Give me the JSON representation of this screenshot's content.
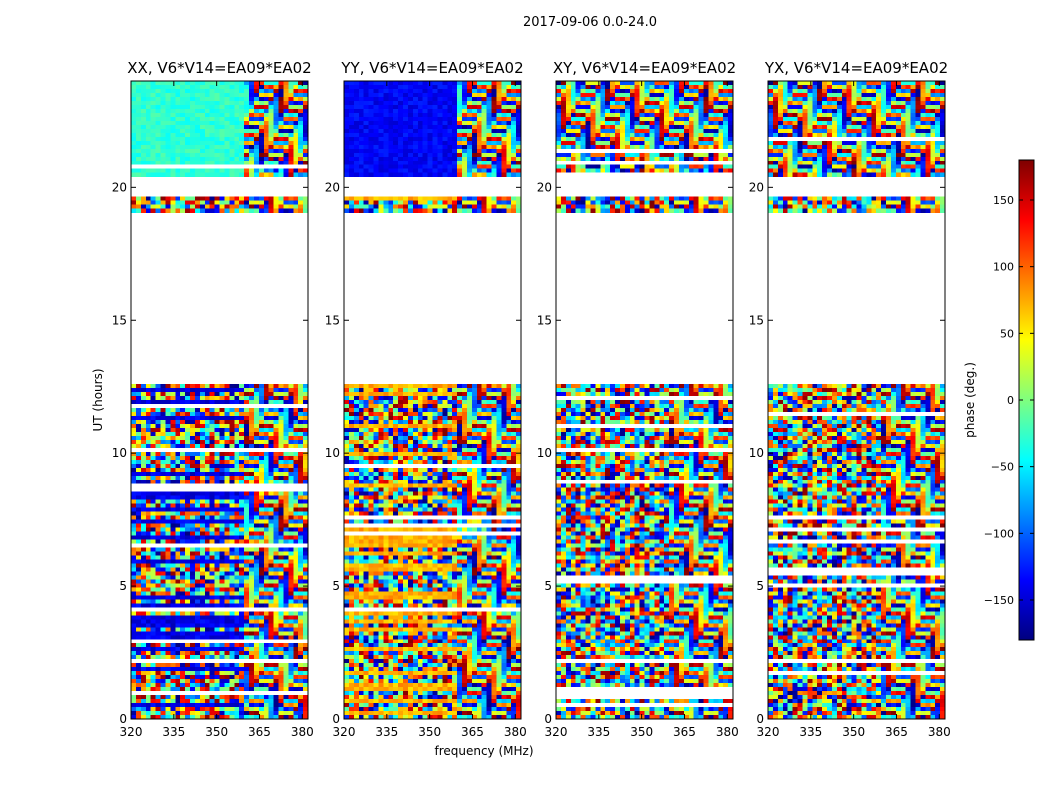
{
  "figure": {
    "suptitle": "2017-09-06 0.0-24.0"
  },
  "chart_data": {
    "type": "heatmap",
    "shared": {
      "xlabel": "frequency (MHz)",
      "ylabel": "UT (hours)",
      "xlim": [
        320,
        382
      ],
      "ylim": [
        0,
        24
      ],
      "x_ticks": [
        320,
        335,
        350,
        365,
        380
      ],
      "y_ticks": [
        0,
        5,
        10,
        15,
        20
      ],
      "grid": false,
      "data_gap_hours": [
        [
          12.6,
          19.1
        ],
        [
          19.65,
          20.4
        ]
      ]
    },
    "panels": [
      {
        "title": "XX, V6*V14=EA09*EA02",
        "pattern": "parallel-hand"
      },
      {
        "title": "YY, V6*V14=EA09*EA02",
        "pattern": "parallel-hand"
      },
      {
        "title": "XY, V6*V14=EA09*EA02",
        "pattern": "cross-hand"
      },
      {
        "title": "YX, V6*V14=EA09*EA02",
        "pattern": "cross-hand"
      }
    ],
    "colorbar": {
      "label": "phase (deg.)",
      "range": [
        -180,
        180
      ],
      "ticks": [
        -150,
        -100,
        -50,
        0,
        50,
        100,
        150
      ],
      "tick_labels": [
        "−150",
        "−100",
        "−50",
        "0",
        "50",
        "100",
        "150"
      ],
      "colormap": "jet",
      "stops": [
        "#00007f",
        "#0000ff",
        "#007fff",
        "#00ffff",
        "#7fff7f",
        "#ffff00",
        "#ff7f00",
        "#ff0000",
        "#7f0000"
      ]
    }
  }
}
